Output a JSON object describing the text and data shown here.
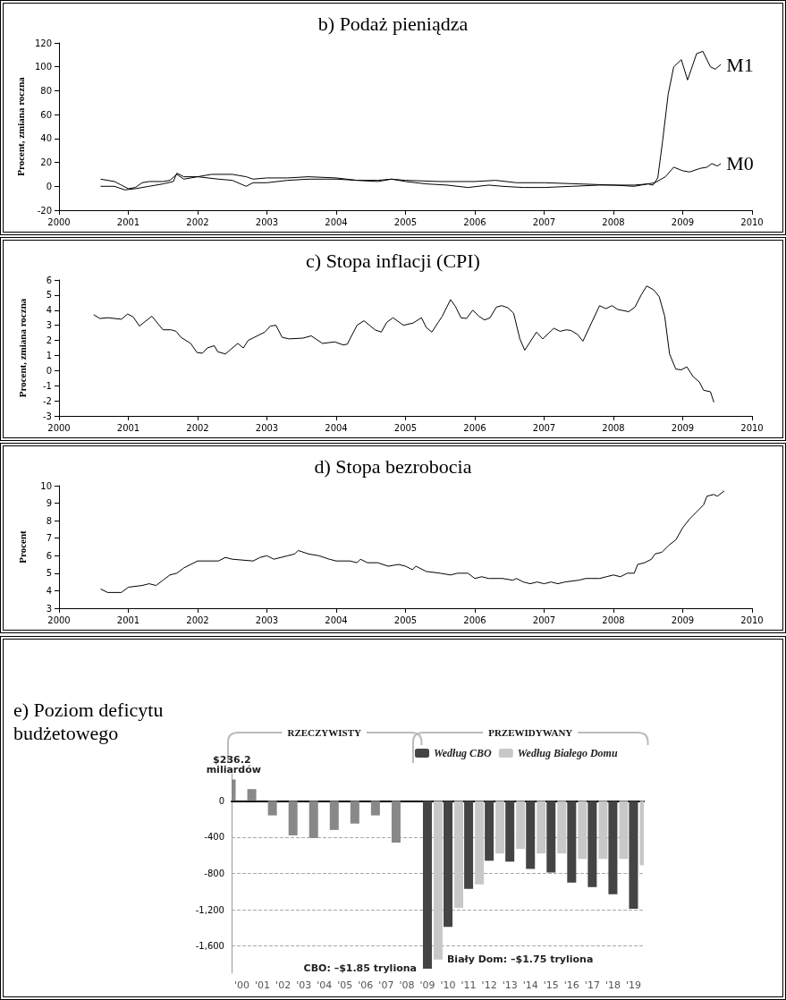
{
  "chart_data": [
    {
      "type": "line",
      "title": "b) Podaż pieniądza",
      "ylabel": "Procent, zmiana roczna",
      "xlim": [
        2000,
        2010
      ],
      "xticks": [
        2000,
        2001,
        2002,
        2003,
        2004,
        2005,
        2006,
        2007,
        2008,
        2009,
        2010
      ],
      "ylim": [
        -20,
        120
      ],
      "yticks": [
        -20,
        0,
        20,
        40,
        60,
        80,
        100,
        120
      ],
      "series": [
        {
          "name": "M1",
          "color": "#000000",
          "x": [
            2000.6,
            2000.8,
            2000.9,
            2001.0,
            2001.1,
            2001.2,
            2001.3,
            2001.5,
            2001.6,
            2001.7,
            2001.8,
            2002.0,
            2002.2,
            2002.5,
            2002.7,
            2002.8,
            2003.0,
            2003.3,
            2003.6,
            2004.0,
            2004.3,
            2004.6,
            2004.8,
            2005.0,
            2005.5,
            2006.0,
            2006.3,
            2006.6,
            2007.0,
            2007.5,
            2008.0,
            2008.3,
            2008.5,
            2008.57,
            2008.64,
            2008.71,
            2008.79,
            2008.87,
            2008.98,
            2009.07,
            2009.2,
            2009.29,
            2009.4,
            2009.47,
            2009.55
          ],
          "values": [
            6,
            4,
            1,
            -2,
            -1,
            3,
            4,
            4,
            5,
            10,
            6,
            8,
            10,
            10,
            8,
            6,
            7,
            7,
            8,
            7,
            5,
            4,
            6,
            5,
            4,
            4,
            5,
            3,
            3,
            2,
            1,
            1,
            2,
            1,
            7,
            38,
            77,
            100,
            106,
            89,
            111,
            113,
            100,
            98,
            102
          ]
        },
        {
          "name": "M0",
          "color": "#000000",
          "x": [
            2000.6,
            2000.8,
            2000.95,
            2001.1,
            2001.3,
            2001.5,
            2001.65,
            2001.7,
            2001.8,
            2002.0,
            2002.3,
            2002.5,
            2002.7,
            2002.8,
            2003.0,
            2003.3,
            2003.6,
            2004.0,
            2004.3,
            2004.6,
            2004.8,
            2005.0,
            2005.3,
            2005.6,
            2005.9,
            2006.2,
            2006.4,
            2006.7,
            2007.0,
            2007.4,
            2007.8,
            2008.0,
            2008.3,
            2008.5,
            2008.6,
            2008.75,
            2008.87,
            2009.0,
            2009.1,
            2009.25,
            2009.35,
            2009.42,
            2009.5,
            2009.55
          ],
          "values": [
            0,
            0,
            -3,
            -2,
            0,
            2,
            4,
            11,
            8,
            8,
            6,
            5,
            0,
            3,
            3,
            5,
            6,
            6,
            5,
            5,
            6,
            4,
            2,
            1,
            -1,
            1,
            0,
            -1,
            -1,
            0,
            1,
            1,
            0,
            2,
            3,
            8,
            16,
            13,
            12,
            15,
            16,
            19,
            17,
            19
          ]
        }
      ]
    },
    {
      "type": "line",
      "title": "c) Stopa inflacji (CPI)",
      "ylabel": "Procent, zmiana roczna",
      "xlim": [
        2000,
        2010
      ],
      "xticks": [
        2000,
        2001,
        2002,
        2003,
        2004,
        2005,
        2006,
        2007,
        2008,
        2009,
        2010
      ],
      "ylim": [
        -3,
        6
      ],
      "yticks": [
        -3,
        -2,
        -1,
        0,
        1,
        2,
        3,
        4,
        5,
        6
      ],
      "series": [
        {
          "color": "#000000",
          "x": [
            2000.5,
            2000.59,
            2000.7,
            2000.9,
            2000.99,
            2001.07,
            2001.16,
            2001.34,
            2001.5,
            2001.62,
            2001.69,
            2001.76,
            2001.9,
            2001.99,
            2002.07,
            2002.14,
            2002.24,
            2002.29,
            2002.4,
            2002.49,
            2002.58,
            2002.66,
            2002.73,
            2002.97,
            2003.05,
            2003.13,
            2003.22,
            2003.32,
            2003.52,
            2003.64,
            2003.8,
            2003.98,
            2004.1,
            2004.16,
            2004.3,
            2004.4,
            2004.56,
            2004.65,
            2004.73,
            2004.82,
            2004.97,
            2005.11,
            2005.23,
            2005.3,
            2005.38,
            2005.53,
            2005.65,
            2005.72,
            2005.8,
            2005.88,
            2005.97,
            2006.06,
            2006.14,
            2006.22,
            2006.31,
            2006.39,
            2006.48,
            2006.56,
            2006.65,
            2006.72,
            2006.89,
            2006.98,
            2007.14,
            2007.23,
            2007.32,
            2007.39,
            2007.48,
            2007.56,
            2007.8,
            2007.89,
            2007.98,
            2008.06,
            2008.22,
            2008.31,
            2008.4,
            2008.48,
            2008.58,
            2008.66,
            2008.74,
            2008.81,
            2008.9,
            2008.98,
            2009.06,
            2009.15,
            2009.24,
            2009.3,
            2009.4,
            2009.45
          ],
          "values": [
            3.7,
            3.45,
            3.5,
            3.4,
            3.75,
            3.55,
            2.95,
            3.6,
            2.7,
            2.7,
            2.6,
            2.2,
            1.8,
            1.2,
            1.15,
            1.5,
            1.65,
            1.25,
            1.1,
            1.45,
            1.8,
            1.5,
            2.0,
            2.55,
            2.95,
            3.0,
            2.2,
            2.1,
            2.15,
            2.3,
            1.8,
            1.9,
            1.7,
            1.75,
            3.0,
            3.3,
            2.7,
            2.55,
            3.2,
            3.5,
            3.0,
            3.15,
            3.5,
            2.85,
            2.55,
            3.6,
            4.7,
            4.25,
            3.5,
            3.45,
            4.0,
            3.6,
            3.35,
            3.5,
            4.2,
            4.3,
            4.15,
            3.8,
            2.1,
            1.35,
            2.55,
            2.1,
            2.8,
            2.6,
            2.7,
            2.65,
            2.4,
            1.95,
            4.3,
            4.1,
            4.3,
            4.05,
            3.9,
            4.2,
            5.0,
            5.6,
            5.35,
            4.9,
            3.6,
            1.1,
            0.1,
            0.05,
            0.25,
            -0.4,
            -0.75,
            -1.3,
            -1.4,
            -2.1
          ]
        }
      ]
    },
    {
      "type": "line",
      "title": "d) Stopa bezrobocia",
      "ylabel": "Procent",
      "xlim": [
        2000,
        2010
      ],
      "xticks": [
        2000,
        2001,
        2002,
        2003,
        2004,
        2005,
        2006,
        2007,
        2008,
        2009,
        2010
      ],
      "ylim": [
        3,
        10
      ],
      "yticks": [
        3,
        4,
        5,
        6,
        7,
        8,
        9,
        10
      ],
      "series": [
        {
          "color": "#000000",
          "x": [
            2000.6,
            2000.7,
            2000.9,
            2001.0,
            2001.2,
            2001.3,
            2001.4,
            2001.5,
            2001.6,
            2001.7,
            2001.8,
            2001.9,
            2002.0,
            2002.3,
            2002.4,
            2002.5,
            2002.8,
            2002.9,
            2003.0,
            2003.1,
            2003.2,
            2003.3,
            2003.4,
            2003.45,
            2003.6,
            2003.75,
            2003.9,
            2004.0,
            2004.2,
            2004.3,
            2004.35,
            2004.45,
            2004.6,
            2004.75,
            2004.9,
            2005.0,
            2005.1,
            2005.15,
            2005.3,
            2005.5,
            2005.65,
            2005.75,
            2005.9,
            2006.0,
            2006.1,
            2006.2,
            2006.4,
            2006.55,
            2006.6,
            2006.7,
            2006.8,
            2006.9,
            2007.0,
            2007.1,
            2007.2,
            2007.3,
            2007.5,
            2007.6,
            2007.8,
            2007.9,
            2008.0,
            2008.1,
            2008.2,
            2008.3,
            2008.35,
            2008.45,
            2008.55,
            2008.6,
            2008.7,
            2008.8,
            2008.9,
            2009.0,
            2009.1,
            2009.2,
            2009.3,
            2009.35,
            2009.45,
            2009.5,
            2009.6
          ],
          "values": [
            4.1,
            3.9,
            3.9,
            4.2,
            4.3,
            4.4,
            4.3,
            4.6,
            4.9,
            5.0,
            5.3,
            5.5,
            5.7,
            5.7,
            5.9,
            5.8,
            5.7,
            5.9,
            6.0,
            5.8,
            5.9,
            6.0,
            6.1,
            6.3,
            6.1,
            6.0,
            5.8,
            5.7,
            5.7,
            5.6,
            5.8,
            5.6,
            5.6,
            5.4,
            5.5,
            5.4,
            5.2,
            5.4,
            5.1,
            5.0,
            4.9,
            5.0,
            5.0,
            4.7,
            4.8,
            4.7,
            4.7,
            4.6,
            4.7,
            4.5,
            4.4,
            4.5,
            4.4,
            4.5,
            4.4,
            4.5,
            4.6,
            4.7,
            4.7,
            4.8,
            4.9,
            4.8,
            5.0,
            5.0,
            5.5,
            5.6,
            5.8,
            6.1,
            6.2,
            6.6,
            6.9,
            7.6,
            8.1,
            8.5,
            8.9,
            9.4,
            9.5,
            9.4,
            9.7
          ]
        }
      ]
    },
    {
      "type": "bar",
      "title": "e) Poziom deficytu budżetowego",
      "categories": [
        "'00",
        "'01",
        "'02",
        "'03",
        "'04",
        "'05",
        "'06",
        "'07",
        "'08",
        "'09",
        "'10",
        "'11",
        "'12",
        "'13",
        "'14",
        "'15",
        "'16",
        "'17",
        "'18",
        "'19"
      ],
      "ylim": [
        -1900,
        300
      ],
      "yticks": [
        0,
        -400,
        -800,
        {
          "value": -1200,
          "label": "-1,200"
        },
        {
          "value": -1600,
          "label": "-1,600"
        }
      ],
      "grid": "y",
      "legend": "top",
      "annotations": [
        "RZECZYWISTY",
        "PRZEWIDYWANY",
        {
          "text": "CBO: –$1.85 tryliona",
          "x": "'09",
          "y": -1850
        },
        {
          "text": "Biały Dom: –$1.75 tryliona",
          "x": "'09",
          "y": -1750
        }
      ],
      "series": [
        {
          "color": "#888888",
          "values": [
            236.2,
            130,
            -160,
            -380,
            -410,
            -320,
            -250,
            -160,
            -460,
            null,
            null,
            null,
            null,
            null,
            null,
            null,
            null,
            null,
            null,
            null
          ],
          "value_labels": [
            "$236.2 miliardów",
            null,
            null,
            null,
            null,
            null,
            null,
            null,
            null,
            null,
            null,
            null,
            null,
            null,
            null,
            null,
            null,
            null,
            null,
            null
          ]
        },
        {
          "name": "Według CBO",
          "color": "#444444",
          "values": [
            null,
            null,
            null,
            null,
            null,
            null,
            null,
            null,
            null,
            -1850,
            -1390,
            -970,
            -660,
            -670,
            -750,
            -790,
            -900,
            -950,
            -1030,
            -1190
          ]
        },
        {
          "name": "Według Białego Domu",
          "color": "#c8c8c8",
          "values": [
            null,
            null,
            null,
            null,
            null,
            null,
            null,
            null,
            null,
            -1750,
            -1180,
            -920,
            -580,
            -530,
            -580,
            -580,
            -640,
            -640,
            -640,
            -710
          ]
        }
      ]
    }
  ]
}
